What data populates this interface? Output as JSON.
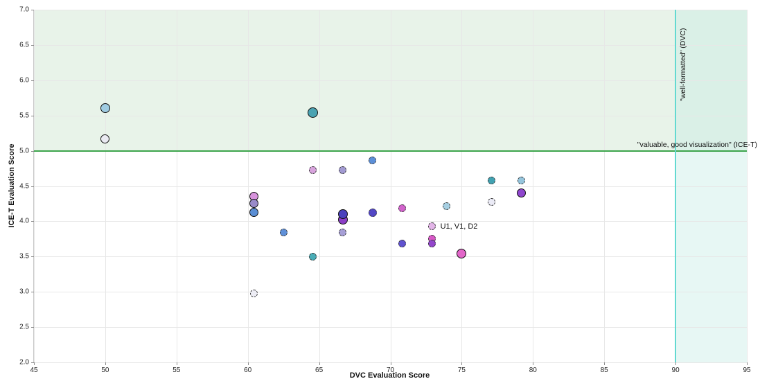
{
  "chart_data": {
    "type": "scatter",
    "title": "",
    "xlabel": "DVC Evaluation Score",
    "ylabel": "ICE-T Evaluation Score",
    "xlim": [
      45,
      95
    ],
    "ylim": [
      2.0,
      7.0
    ],
    "x_ticks": [
      45,
      50,
      55,
      60,
      65,
      70,
      75,
      80,
      85,
      90,
      95
    ],
    "y_ticks": [
      2.0,
      2.5,
      3.0,
      3.5,
      4.0,
      4.5,
      5.0,
      5.5,
      6.0,
      6.5,
      7.0
    ],
    "grid": true,
    "legend": "none",
    "thresholds": {
      "icet": {
        "axis": "y",
        "value": 5.0,
        "label": "\"valuable, good visualization\" (ICE-T)",
        "line_color": "#3ca44b",
        "region_color": "rgba(205,229,207,0.45)"
      },
      "dvc": {
        "axis": "x",
        "value": 90,
        "label": "\"well-formatted\" (DVC)",
        "line_color": "#63d9d1",
        "region_color": "rgba(198,235,229,0.42)"
      }
    },
    "annotation": {
      "text": "U1, V1, D2",
      "x": 72.92,
      "y": 3.93
    },
    "points": [
      {
        "x": 50.0,
        "y": 5.61,
        "color": "#9fcbe1",
        "edge": "solid",
        "r": 7
      },
      {
        "x": 50.0,
        "y": 5.17,
        "color": "#eaeaf2",
        "edge": "solid",
        "r": 6.5
      },
      {
        "x": 64.58,
        "y": 5.54,
        "color": "#4aa2b2",
        "edge": "solid",
        "r": 7.5
      },
      {
        "x": 64.58,
        "y": 4.73,
        "color": "#d8a3dd",
        "edge": "dashed",
        "r": 5.5
      },
      {
        "x": 66.67,
        "y": 4.73,
        "color": "#a29ad2",
        "edge": "dashed",
        "r": 5.5
      },
      {
        "x": 68.75,
        "y": 4.86,
        "color": "#5c8fd8",
        "edge": "dashed",
        "r": 5.5
      },
      {
        "x": 60.42,
        "y": 4.35,
        "color": "#d793dc",
        "edge": "solid",
        "r": 6.5
      },
      {
        "x": 60.42,
        "y": 4.25,
        "color": "#998bc9",
        "edge": "solid",
        "r": 6.5
      },
      {
        "x": 60.42,
        "y": 4.13,
        "color": "#5a8ed4",
        "edge": "solid",
        "r": 6.5
      },
      {
        "x": 62.5,
        "y": 3.84,
        "color": "#5f90d8",
        "edge": "dashed",
        "r": 5.5
      },
      {
        "x": 64.58,
        "y": 3.5,
        "color": "#49acb6",
        "edge": "dashed",
        "r": 5.5
      },
      {
        "x": 66.67,
        "y": 4.02,
        "color": "#8b3ec6",
        "edge": "solid",
        "r": 7
      },
      {
        "x": 66.67,
        "y": 4.1,
        "color": "#4a41bd",
        "edge": "solid",
        "r": 7
      },
      {
        "x": 66.67,
        "y": 3.84,
        "color": "#a69fd6",
        "edge": "dashed",
        "r": 5.5
      },
      {
        "x": 68.75,
        "y": 4.12,
        "color": "#5347c6",
        "edge": "dashed",
        "r": 6
      },
      {
        "x": 70.83,
        "y": 4.19,
        "color": "#d263cc",
        "edge": "dashed",
        "r": 5.5
      },
      {
        "x": 70.83,
        "y": 3.68,
        "color": "#6052d0",
        "edge": "dashed",
        "r": 5.5
      },
      {
        "x": 72.92,
        "y": 3.93,
        "color": "#e3b5e8",
        "edge": "dashed",
        "r": 5.5
      },
      {
        "x": 72.92,
        "y": 3.75,
        "color": "#d958c8",
        "edge": "dashed",
        "r": 5.5
      },
      {
        "x": 72.92,
        "y": 3.68,
        "color": "#9346cc",
        "edge": "dashed",
        "r": 5.5
      },
      {
        "x": 73.96,
        "y": 4.22,
        "color": "#a6cfe2",
        "edge": "dashed",
        "r": 5.5
      },
      {
        "x": 75.0,
        "y": 3.54,
        "color": "#e266c9",
        "edge": "solid",
        "r": 7
      },
      {
        "x": 77.08,
        "y": 4.58,
        "color": "#41a2b2",
        "edge": "dashed",
        "r": 5.5
      },
      {
        "x": 79.17,
        "y": 4.58,
        "color": "#95c5dd",
        "edge": "dashed",
        "r": 5.5
      },
      {
        "x": 79.17,
        "y": 4.4,
        "color": "#8f46ce",
        "edge": "solid",
        "r": 6.5
      },
      {
        "x": 77.08,
        "y": 4.27,
        "color": "#ebebf6",
        "edge": "dashed",
        "r": 5.5
      },
      {
        "x": 60.42,
        "y": 2.98,
        "color": "#ededf5",
        "edge": "dashed",
        "r": 5.5
      }
    ]
  },
  "styles": {
    "grid_color": "#e7e7e7",
    "spine_color": "#8a8a8a",
    "background": "#ffffff"
  }
}
